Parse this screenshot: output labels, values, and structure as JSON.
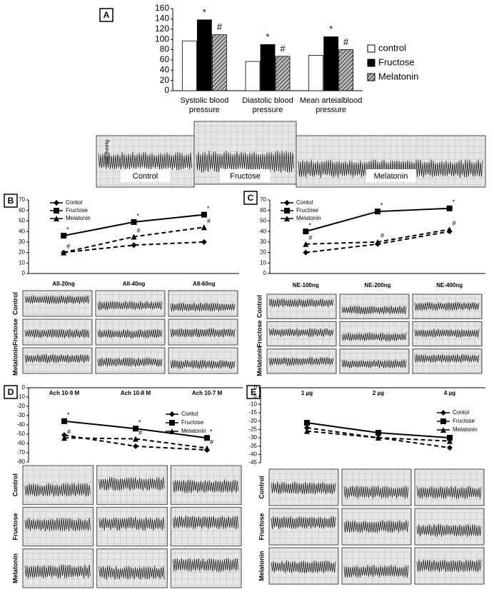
{
  "chart_data": [
    {
      "type": "bar",
      "panel": "A",
      "categories": [
        "Systolic blood pressure",
        "Diastolic blood pressure",
        "Mean arteialblood pressure"
      ],
      "series": [
        {
          "name": "control",
          "color": "#ffffff",
          "values": [
            97,
            57,
            69
          ],
          "annotations": [
            null,
            null,
            null
          ]
        },
        {
          "name": "Fructose",
          "color": "#000000",
          "values": [
            138,
            90,
            105
          ],
          "annotations": [
            "*",
            "*",
            "*"
          ]
        },
        {
          "name": "Melatonin",
          "color": "#7f7f7f",
          "hatch": true,
          "values": [
            109,
            67,
            80
          ],
          "annotations": [
            "#",
            "#",
            "#"
          ]
        }
      ],
      "ylim": [
        0,
        160
      ],
      "yticks": [
        0,
        20,
        40,
        60,
        80,
        100,
        120,
        140,
        160
      ],
      "scale_label": "100 mmHg",
      "trace_labels": [
        "Control",
        "Fructose",
        "Melatonin"
      ]
    },
    {
      "type": "line",
      "panel": "B",
      "categories": [
        "AII-20ng",
        "AII-40ng",
        "AII-60ng"
      ],
      "series": [
        {
          "name": "Contol",
          "color": "#000000",
          "marker": "diamond",
          "dash": true,
          "values": [
            20,
            27,
            30
          ],
          "annotations": [
            null,
            null,
            null
          ]
        },
        {
          "name": "Fructose",
          "color": "#000000",
          "marker": "square",
          "dash": false,
          "values": [
            36,
            49,
            56
          ],
          "annotations": [
            "*",
            "*",
            "*"
          ]
        },
        {
          "name": "Melatonin",
          "color": "#000000",
          "marker": "triangle",
          "dash": true,
          "values": [
            20,
            35,
            44
          ],
          "annotations": [
            "#",
            "#",
            "#"
          ]
        }
      ],
      "ylim": [
        0,
        70
      ],
      "yticks": [
        0,
        10,
        20,
        30,
        40,
        50,
        60,
        70
      ],
      "trace_labels": [
        "Control",
        "Fructose",
        "Melatonin"
      ]
    },
    {
      "type": "line",
      "panel": "C",
      "categories": [
        "NE-100ng",
        "NE-200ng",
        "NE-400ng"
      ],
      "series": [
        {
          "name": "Contol",
          "color": "#000000",
          "marker": "diamond",
          "dash": true,
          "values": [
            20,
            28,
            40
          ],
          "annotations": [
            null,
            null,
            null
          ]
        },
        {
          "name": "Fructose",
          "color": "#000000",
          "marker": "square",
          "dash": false,
          "values": [
            40,
            59,
            62
          ],
          "annotations": [
            "*",
            "*",
            "*"
          ]
        },
        {
          "name": "Melatonin",
          "color": "#000000",
          "marker": "triangle",
          "dash": true,
          "values": [
            28,
            30,
            42
          ],
          "annotations": [
            "#",
            "#",
            "#"
          ]
        }
      ],
      "ylim": [
        0,
        70
      ],
      "yticks": [
        0,
        10,
        20,
        30,
        40,
        50,
        60,
        70
      ],
      "trace_labels": [
        "Control",
        "Fructose",
        "Melatonin"
      ]
    },
    {
      "type": "line",
      "panel": "D",
      "categories": [
        "Ach 10-9 M",
        "Ach 10-8 M",
        "Ach 10-7 M"
      ],
      "series": [
        {
          "name": "Contol",
          "color": "#000000",
          "marker": "diamond",
          "dash": true,
          "values": [
            -51,
            -63,
            -67
          ],
          "annotations": [
            null,
            null,
            null
          ]
        },
        {
          "name": "Fructose",
          "color": "#000000",
          "marker": "square",
          "dash": false,
          "values": [
            -36,
            -44,
            -54
          ],
          "annotations": [
            "*",
            "*",
            "*"
          ]
        },
        {
          "name": "Melatonin",
          "color": "#000000",
          "marker": "triangle",
          "dash": true,
          "values": [
            -54,
            -55,
            -65
          ],
          "annotations": [
            "#",
            "#",
            "#"
          ]
        }
      ],
      "ylim": [
        -80,
        0
      ],
      "yticks": [
        0,
        -10,
        -20,
        -30,
        -40,
        -50,
        -60,
        -70,
        -80
      ],
      "trace_labels": [
        "Control",
        "Fructose",
        "Melatonin"
      ]
    },
    {
      "type": "line",
      "panel": "E",
      "categories": [
        "1 µg",
        "2 µg",
        "4 µg"
      ],
      "series": [
        {
          "name": "Contol",
          "color": "#000000",
          "marker": "diamond",
          "dash": true,
          "values": [
            -24,
            -30,
            -36
          ],
          "annotations": [
            null,
            null,
            null
          ]
        },
        {
          "name": "Fructose",
          "color": "#000000",
          "marker": "square",
          "dash": false,
          "values": [
            -21,
            -27,
            -30
          ],
          "annotations": [
            null,
            null,
            null
          ]
        },
        {
          "name": "Melatonin",
          "color": "#000000",
          "marker": "triangle",
          "dash": true,
          "values": [
            -26,
            -30,
            -32
          ],
          "annotations": [
            null,
            null,
            null
          ]
        }
      ],
      "ylim": [
        -45,
        0
      ],
      "yticks": [
        0,
        -5,
        -10,
        -15,
        -20,
        -25,
        -30,
        -35,
        -40,
        -45
      ],
      "trace_labels": [
        "Control",
        "Fructose",
        "Melatonin"
      ]
    }
  ]
}
